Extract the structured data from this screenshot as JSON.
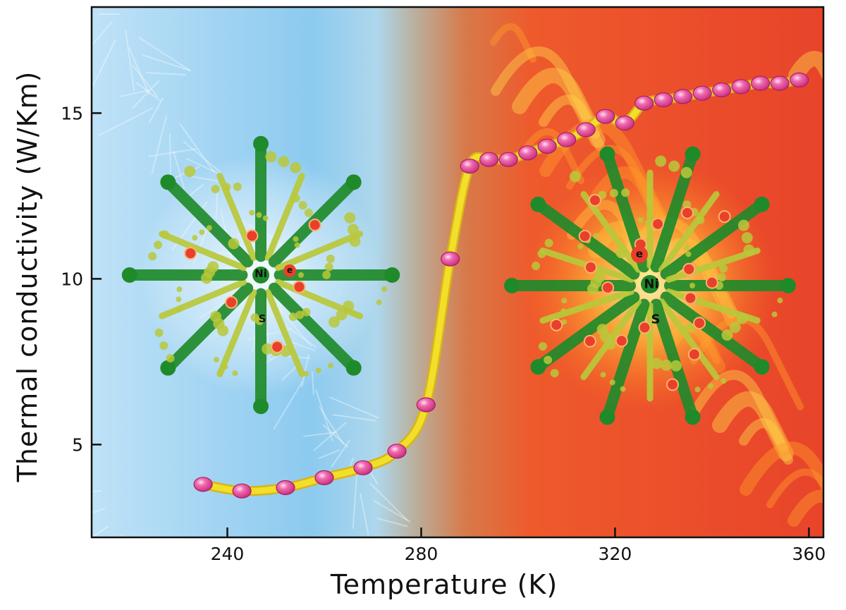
{
  "chart_data": {
    "type": "line",
    "title": "",
    "xlabel": "Temperature (K)",
    "ylabel": "Thermal conductivity (W/Km)",
    "xlim": [
      212,
      363
    ],
    "ylim": [
      2.2,
      18.2
    ],
    "xticks": [
      240,
      280,
      320,
      360
    ],
    "yticks": [
      5,
      10,
      15
    ],
    "grid": false,
    "background": "cold-to-hot gradient (frost on left, flames on right)",
    "series": [
      {
        "name": "",
        "color": "#e8449a",
        "curve_color": "#f2df2a",
        "x": [
          235,
          243,
          252,
          260,
          268,
          275,
          281,
          286,
          290,
          294,
          298,
          302,
          306,
          310,
          314,
          318,
          322,
          326,
          330,
          334,
          338,
          342,
          346,
          350,
          354,
          358
        ],
        "y": [
          3.8,
          3.6,
          3.7,
          4.0,
          4.3,
          4.8,
          6.2,
          10.6,
          13.4,
          13.6,
          13.6,
          13.8,
          14.0,
          14.2,
          14.5,
          14.9,
          14.7,
          15.3,
          15.4,
          15.5,
          15.6,
          15.7,
          15.8,
          15.9,
          15.9,
          16.0
        ]
      }
    ],
    "annotations": [
      {
        "id": "cold",
        "atom_center": "Ni",
        "atom_below": "S",
        "carrier": "e",
        "symbol_red": "e"
      },
      {
        "id": "hot",
        "atom_center": "Ni",
        "atom_below": "S",
        "carrier": "e"
      }
    ],
    "colors": {
      "frame": "#111111",
      "marker": "#e8449a",
      "marker_highlight": "#ffd6ec",
      "curve": "#f2df2a",
      "curve_edge": "#d9b516",
      "atom_dark": "#1f8a2a",
      "atom_light": "#b8c83a",
      "electron": "#e8402a"
    }
  }
}
